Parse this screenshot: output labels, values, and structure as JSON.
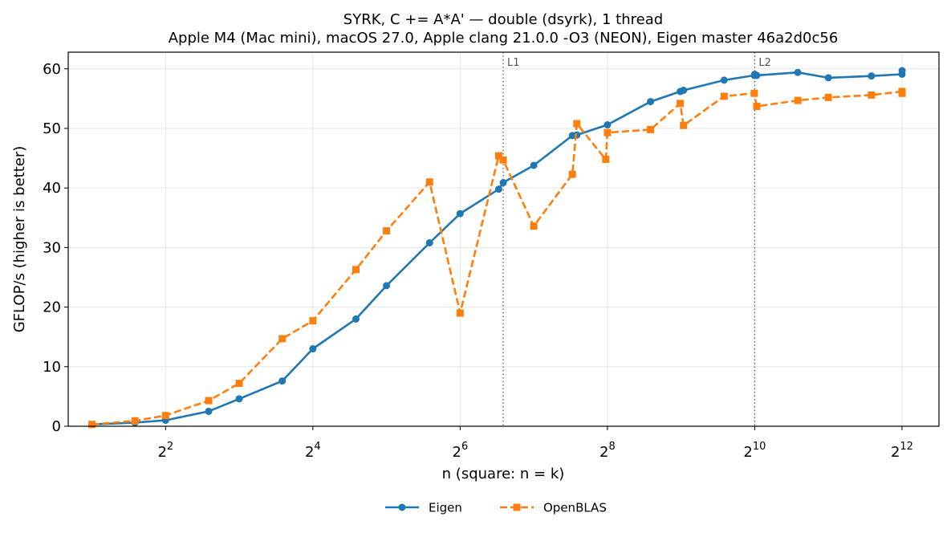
{
  "chart_data": {
    "type": "line",
    "title": "SYRK, C += A*A' — double (dsyrk), 1 thread",
    "subtitle": "Apple M4 (Mac mini), macOS 27.0, Apple clang 21.0.0 -O3 (NEON), Eigen master 46a2d0c56",
    "xlabel": "n (square: n = k)",
    "ylabel": "GFLOP/s (higher is better)",
    "xscale": "log2",
    "xlim": [
      1.6,
      5800
    ],
    "ylim": [
      0,
      62.8
    ],
    "xticks": [
      4,
      16,
      64,
      256,
      1024,
      4096
    ],
    "xtick_labels": [
      {
        "base": "2",
        "exp": "2"
      },
      {
        "base": "2",
        "exp": "4"
      },
      {
        "base": "2",
        "exp": "6"
      },
      {
        "base": "2",
        "exp": "8"
      },
      {
        "base": "2",
        "exp": "10"
      },
      {
        "base": "2",
        "exp": "12"
      }
    ],
    "yticks": [
      0,
      10,
      20,
      30,
      40,
      50,
      60
    ],
    "grid": true,
    "legend_position": "bottom-center",
    "vertical_markers": [
      {
        "x": 96,
        "label": "L1"
      },
      {
        "x": 1024,
        "label": "L2"
      }
    ],
    "series": [
      {
        "name": "Eigen",
        "color": "#1f77b4",
        "marker": "circle",
        "linestyle": "solid",
        "points": [
          [
            2,
            0.3
          ],
          [
            3,
            0.6
          ],
          [
            4,
            1.0
          ],
          [
            6,
            2.5
          ],
          [
            8,
            4.6
          ],
          [
            12,
            7.6
          ],
          [
            16,
            13.0
          ],
          [
            24,
            18.0
          ],
          [
            32,
            23.6
          ],
          [
            48,
            30.8
          ],
          [
            64,
            35.7
          ],
          [
            92,
            39.8
          ],
          [
            96,
            40.9
          ],
          [
            128,
            43.8
          ],
          [
            184,
            48.8
          ],
          [
            192,
            48.9
          ],
          [
            256,
            50.6
          ],
          [
            384,
            54.5
          ],
          [
            508,
            56.2
          ],
          [
            524,
            56.4
          ],
          [
            768,
            58.1
          ],
          [
            1020,
            58.9
          ],
          [
            1024,
            59.1
          ],
          [
            1044,
            58.9
          ],
          [
            1536,
            59.4
          ],
          [
            2048,
            58.5
          ],
          [
            3072,
            58.8
          ],
          [
            4096,
            59.1
          ],
          [
            4100,
            59.7
          ]
        ]
      },
      {
        "name": "OpenBLAS",
        "color": "#ff7f0e",
        "marker": "square",
        "linestyle": "dashed",
        "points": [
          [
            2,
            0.3
          ],
          [
            3,
            0.9
          ],
          [
            4,
            1.8
          ],
          [
            6,
            4.3
          ],
          [
            8,
            7.2
          ],
          [
            12,
            14.7
          ],
          [
            16,
            17.7
          ],
          [
            24,
            26.3
          ],
          [
            32,
            32.8
          ],
          [
            48,
            41.0
          ],
          [
            64,
            19.0
          ],
          [
            92,
            45.4
          ],
          [
            96,
            44.7
          ],
          [
            128,
            33.6
          ],
          [
            184,
            42.3
          ],
          [
            192,
            50.8
          ],
          [
            252,
            44.8
          ],
          [
            256,
            49.3
          ],
          [
            384,
            49.8
          ],
          [
            508,
            54.2
          ],
          [
            524,
            50.5
          ],
          [
            768,
            55.4
          ],
          [
            1020,
            55.9
          ],
          [
            1044,
            53.7
          ],
          [
            1536,
            54.7
          ],
          [
            2048,
            55.2
          ],
          [
            3072,
            55.6
          ],
          [
            4096,
            56.2
          ],
          [
            4100,
            55.9
          ]
        ]
      }
    ]
  }
}
